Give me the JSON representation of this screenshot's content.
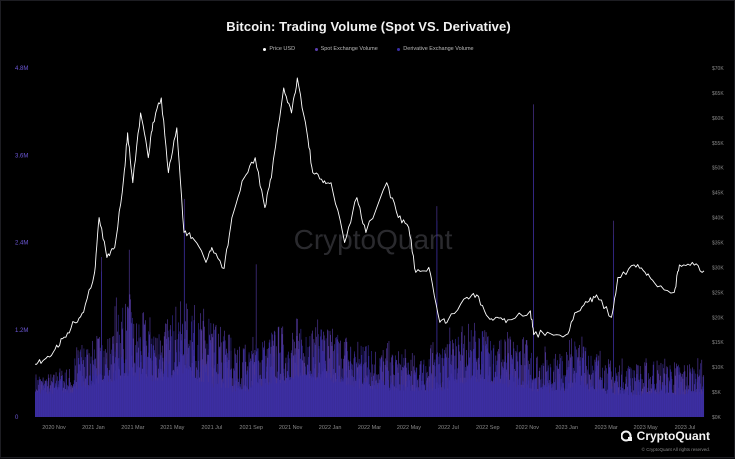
{
  "colors": {
    "price": "#ffffff",
    "spot": "#5c3fb0",
    "derivative": "#3a2ea6",
    "left_axis": "#6d58d8",
    "right_axis": "#888888",
    "bottom_axis": "#8a8a8a"
  },
  "brand": {
    "name": "CryptoQuant",
    "copyright": "© CryptoQuant All rights reserved.",
    "watermark": "CryptoQuant"
  },
  "chart_data": {
    "type": "bar",
    "title": "Bitcoin: Trading Volume (Spot VS. Derivative)",
    "legend_position": "top-center",
    "grid": false,
    "x_ticks": [
      "2020 Nov",
      "2021 Jan",
      "2021 Mar",
      "2021 May",
      "2021 Jul",
      "2021 Sep",
      "2021 Nov",
      "2022 Jan",
      "2022 Mar",
      "2022 May",
      "2022 Jul",
      "2022 Sep",
      "2022 Nov",
      "2023 Jan",
      "2023 Mar",
      "2023 May",
      "2023 Jul"
    ],
    "x_range": [
      "2020-10-01",
      "2023-07-31"
    ],
    "left_axis": {
      "ticks": [
        "0",
        "1.2M",
        "2.4M",
        "3.6M",
        "4.8M"
      ],
      "range": [
        0,
        4800000
      ]
    },
    "right_axis": {
      "ticks": [
        "$0K",
        "$5K",
        "$10K",
        "$15K",
        "$20K",
        "$25K",
        "$30K",
        "$35K",
        "$40K",
        "$45K",
        "$50K",
        "$55K",
        "$60K",
        "$65K",
        "$70K"
      ],
      "range": [
        0,
        70000
      ]
    },
    "series": [
      {
        "name": "Price USD",
        "type": "line",
        "axis": "right",
        "points": [
          [
            "2020-10-01",
            10600
          ],
          [
            "2020-10-15",
            11500
          ],
          [
            "2020-11-01",
            13600
          ],
          [
            "2020-11-15",
            16000
          ],
          [
            "2020-12-01",
            19000
          ],
          [
            "2020-12-15",
            21000
          ],
          [
            "2021-01-01",
            29000
          ],
          [
            "2021-01-08",
            40000
          ],
          [
            "2021-01-20",
            32000
          ],
          [
            "2021-02-01",
            34000
          ],
          [
            "2021-02-15",
            48000
          ],
          [
            "2021-02-21",
            57000
          ],
          [
            "2021-03-01",
            47000
          ],
          [
            "2021-03-13",
            61000
          ],
          [
            "2021-03-25",
            52000
          ],
          [
            "2021-04-01",
            59000
          ],
          [
            "2021-04-14",
            64000
          ],
          [
            "2021-04-25",
            49000
          ],
          [
            "2021-05-08",
            58000
          ],
          [
            "2021-05-19",
            37000
          ],
          [
            "2021-06-01",
            36000
          ],
          [
            "2021-06-22",
            31000
          ],
          [
            "2021-07-01",
            34000
          ],
          [
            "2021-07-20",
            29800
          ],
          [
            "2021-08-01",
            40000
          ],
          [
            "2021-08-20",
            48000
          ],
          [
            "2021-09-06",
            52000
          ],
          [
            "2021-09-21",
            42000
          ],
          [
            "2021-10-01",
            48000
          ],
          [
            "2021-10-20",
            66000
          ],
          [
            "2021-11-01",
            61000
          ],
          [
            "2021-11-10",
            68000
          ],
          [
            "2021-11-25",
            57000
          ],
          [
            "2021-12-04",
            49000
          ],
          [
            "2021-12-20",
            47000
          ],
          [
            "2022-01-01",
            47000
          ],
          [
            "2022-01-22",
            35000
          ],
          [
            "2022-02-10",
            44000
          ],
          [
            "2022-02-24",
            37000
          ],
          [
            "2022-03-28",
            47000
          ],
          [
            "2022-04-15",
            40000
          ],
          [
            "2022-05-01",
            38000
          ],
          [
            "2022-05-12",
            29000
          ],
          [
            "2022-06-01",
            30000
          ],
          [
            "2022-06-18",
            19000
          ],
          [
            "2022-07-01",
            19500
          ],
          [
            "2022-07-30",
            24000
          ],
          [
            "2022-08-14",
            24500
          ],
          [
            "2022-09-01",
            20000
          ],
          [
            "2022-09-15",
            20000
          ],
          [
            "2022-10-01",
            19500
          ],
          [
            "2022-11-05",
            21300
          ],
          [
            "2022-11-10",
            16500
          ],
          [
            "2022-12-01",
            17000
          ],
          [
            "2022-12-30",
            16500
          ],
          [
            "2023-01-15",
            21000
          ],
          [
            "2023-02-01",
            23000
          ],
          [
            "2023-02-15",
            24500
          ],
          [
            "2023-03-10",
            20000
          ],
          [
            "2023-03-20",
            28000
          ],
          [
            "2023-04-14",
            30500
          ],
          [
            "2023-05-01",
            29000
          ],
          [
            "2023-05-15",
            27000
          ],
          [
            "2023-06-15",
            25000
          ],
          [
            "2023-06-23",
            30500
          ],
          [
            "2023-07-13",
            31000
          ],
          [
            "2023-07-31",
            29300
          ]
        ]
      },
      {
        "name": "Spot Exchange Volume",
        "type": "bar",
        "axis": "left",
        "monthly_level": [
          [
            340000,
            620000
          ],
          [
            360000,
            700000
          ],
          [
            420000,
            1050000
          ],
          [
            500000,
            1200000
          ],
          [
            560000,
            1700000
          ],
          [
            520000,
            1450000
          ],
          [
            540000,
            1400000
          ],
          [
            620000,
            1600000
          ],
          [
            520000,
            1550000
          ],
          [
            440000,
            1300000
          ],
          [
            380000,
            1050000
          ],
          [
            460000,
            1150000
          ],
          [
            500000,
            1300000
          ],
          [
            560000,
            1400000
          ],
          [
            540000,
            1350000
          ],
          [
            480000,
            1250000
          ],
          [
            420000,
            1100000
          ],
          [
            420000,
            1050000
          ],
          [
            360000,
            950000
          ],
          [
            360000,
            900000
          ],
          [
            380000,
            1050000
          ],
          [
            500000,
            1250000
          ],
          [
            520000,
            1300000
          ],
          [
            480000,
            1200000
          ],
          [
            440000,
            1150000
          ],
          [
            380000,
            1000000
          ],
          [
            360000,
            920000
          ],
          [
            440000,
            1150000
          ],
          [
            380000,
            1000000
          ],
          [
            320000,
            820000
          ],
          [
            300000,
            780000
          ],
          [
            340000,
            840000
          ],
          [
            320000,
            800000
          ],
          [
            340000,
            820000
          ]
        ],
        "peaks": [
          [
            "2021-01-11",
            2200000
          ],
          [
            "2021-02-23",
            2300000
          ],
          [
            "2021-05-19",
            3000000
          ],
          [
            "2021-09-07",
            2100000
          ],
          [
            "2022-06-13",
            2900000
          ],
          [
            "2022-11-09",
            4300000
          ],
          [
            "2023-03-13",
            2700000
          ]
        ]
      },
      {
        "name": "Derivative Exchange Volume",
        "type": "bar",
        "axis": "left",
        "monthly_level": [
          [
            320000,
            560000
          ],
          [
            330000,
            640000
          ],
          [
            380000,
            950000
          ],
          [
            460000,
            1100000
          ],
          [
            520000,
            1550000
          ],
          [
            480000,
            1300000
          ],
          [
            500000,
            1300000
          ],
          [
            560000,
            1450000
          ],
          [
            480000,
            1400000
          ],
          [
            400000,
            1200000
          ],
          [
            340000,
            960000
          ],
          [
            420000,
            1050000
          ],
          [
            460000,
            1200000
          ],
          [
            520000,
            1300000
          ],
          [
            500000,
            1250000
          ],
          [
            440000,
            1150000
          ],
          [
            380000,
            1000000
          ],
          [
            380000,
            960000
          ],
          [
            330000,
            880000
          ],
          [
            330000,
            840000
          ],
          [
            350000,
            960000
          ],
          [
            460000,
            1150000
          ],
          [
            480000,
            1200000
          ],
          [
            440000,
            1100000
          ],
          [
            400000,
            1050000
          ],
          [
            350000,
            920000
          ],
          [
            330000,
            860000
          ],
          [
            400000,
            1050000
          ],
          [
            350000,
            920000
          ],
          [
            300000,
            760000
          ],
          [
            280000,
            720000
          ],
          [
            310000,
            780000
          ],
          [
            300000,
            740000
          ],
          [
            310000,
            760000
          ]
        ],
        "peaks": [
          [
            "2021-01-11",
            2000000
          ],
          [
            "2021-05-19",
            2700000
          ],
          [
            "2022-06-13",
            2700000
          ],
          [
            "2022-11-09",
            3800000
          ],
          [
            "2023-03-13",
            2500000
          ]
        ]
      }
    ]
  }
}
